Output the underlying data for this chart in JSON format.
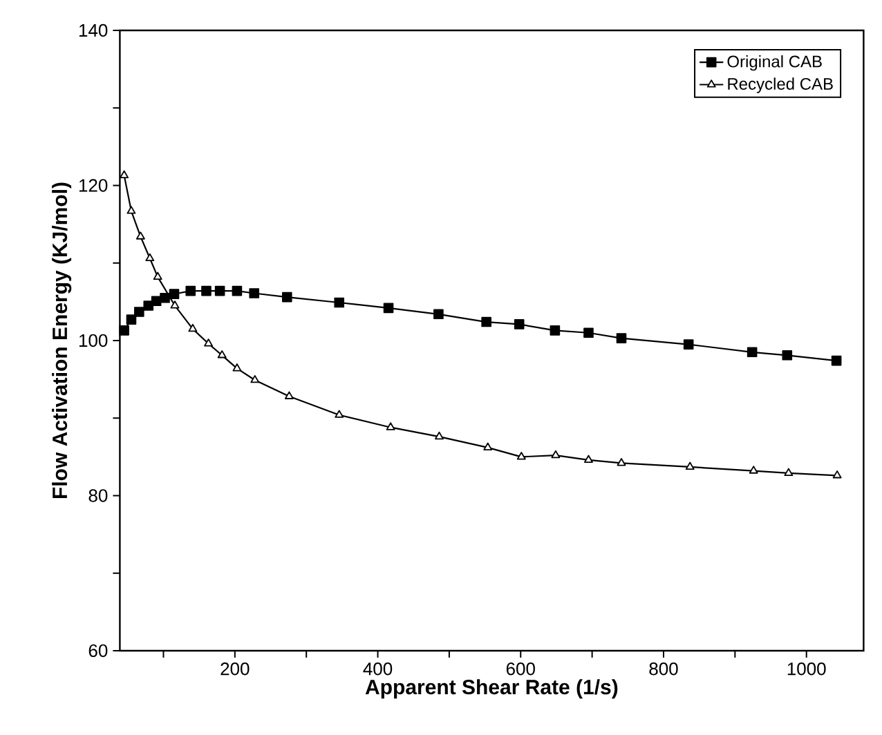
{
  "chart_data": {
    "type": "line",
    "xlabel": "Apparent Shear Rate (1/s)",
    "ylabel": "Flow Activation Energy (KJ/mol)",
    "xlim": [
      39,
      1080
    ],
    "ylim": [
      60,
      140
    ],
    "xticks": [
      {
        "value": 100,
        "label": null
      },
      200,
      {
        "value": 300,
        "label": null
      },
      400,
      {
        "value": 500,
        "label": null
      },
      600,
      {
        "value": 700,
        "label": null
      },
      800,
      {
        "value": 900,
        "label": null
      },
      1000
    ],
    "yticks": [
      60,
      {
        "value": 70,
        "label": null
      },
      80,
      {
        "value": 90,
        "label": null
      },
      100,
      {
        "value": 110,
        "label": null
      },
      120,
      {
        "value": 130,
        "label": null
      },
      140
    ],
    "grid": false,
    "legend": "top right",
    "line_style": "solid",
    "series": [
      {
        "name": "Original CAB",
        "color": "#000000",
        "marker": "square",
        "x": [
          45,
          55,
          66,
          79,
          90,
          102,
          115,
          138,
          160,
          179,
          203,
          227,
          273,
          346,
          415,
          485,
          552,
          598,
          648,
          695,
          741,
          835,
          924,
          973,
          1042
        ],
        "values": [
          101.3,
          102.7,
          103.7,
          104.5,
          105.1,
          105.5,
          106.0,
          106.4,
          106.4,
          106.4,
          106.4,
          106.1,
          105.6,
          104.9,
          104.2,
          103.4,
          102.4,
          102.1,
          101.3,
          101.0,
          100.3,
          99.5,
          98.5,
          98.1,
          97.4
        ]
      },
      {
        "name": "Recycled CAB",
        "color": "#000000",
        "marker": "triangle",
        "x": [
          45,
          55,
          68,
          81,
          92,
          116,
          141,
          163,
          182,
          203,
          228,
          276,
          346,
          418,
          486,
          554,
          601,
          649,
          695,
          741,
          837,
          926,
          975,
          1043
        ],
        "values": [
          121.3,
          116.7,
          113.4,
          110.6,
          108.2,
          104.5,
          101.5,
          99.6,
          98.1,
          96.4,
          94.9,
          92.8,
          90.4,
          88.8,
          87.6,
          86.2,
          85.0,
          85.2,
          84.6,
          84.2,
          83.7,
          83.2,
          82.9,
          82.6
        ]
      }
    ]
  }
}
